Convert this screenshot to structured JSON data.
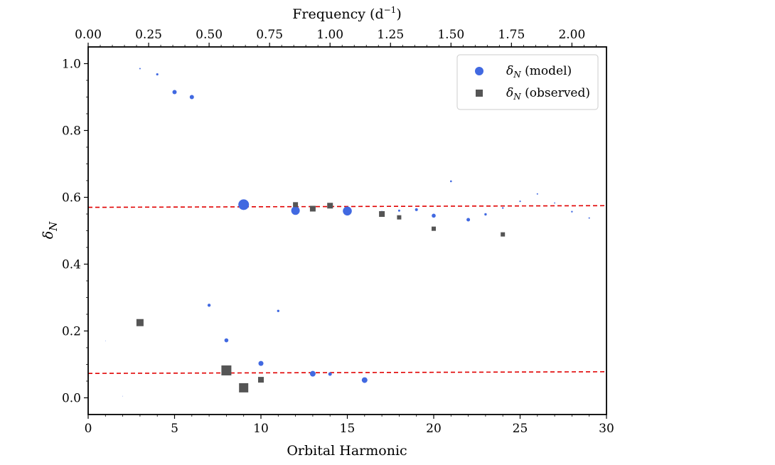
{
  "chart_data": {
    "type": "scatter",
    "title": "",
    "xlabel": "Orbital Harmonic",
    "ylabel": "δ",
    "ylabel_sub": "N",
    "top_xlabel": "Frequency (d",
    "top_xlabel_sup": "−1",
    "top_xlabel_end": ")",
    "xlim": [
      0,
      30
    ],
    "ylim": [
      -0.05,
      1.05
    ],
    "top_xlim": [
      0,
      2.1429
    ],
    "x_ticks": [
      {
        "value": 0,
        "label": "0"
      },
      {
        "value": 5,
        "label": "5"
      },
      {
        "value": 10,
        "label": "10"
      },
      {
        "value": 15,
        "label": "15"
      },
      {
        "value": 20,
        "label": "20"
      },
      {
        "value": 25,
        "label": "25"
      },
      {
        "value": 30,
        "label": "30"
      }
    ],
    "y_ticks": [
      {
        "value": 0.0,
        "label": "0.0"
      },
      {
        "value": 0.2,
        "label": "0.2"
      },
      {
        "value": 0.4,
        "label": "0.4"
      },
      {
        "value": 0.6,
        "label": "0.6"
      },
      {
        "value": 0.8,
        "label": "0.8"
      },
      {
        "value": 1.0,
        "label": "1.0"
      }
    ],
    "top_ticks": [
      {
        "value": 0.0,
        "label": "0.00"
      },
      {
        "value": 0.25,
        "label": "0.25"
      },
      {
        "value": 0.5,
        "label": "0.50"
      },
      {
        "value": 0.75,
        "label": "0.75"
      },
      {
        "value": 1.0,
        "label": "1.00"
      },
      {
        "value": 1.25,
        "label": "1.25"
      },
      {
        "value": 1.5,
        "label": "1.50"
      },
      {
        "value": 1.75,
        "label": "1.75"
      },
      {
        "value": 2.0,
        "label": "2.00"
      }
    ],
    "legend": {
      "location": "upper right",
      "entries": [
        {
          "symbol": "δ",
          "sub": "N",
          "text": " (model)",
          "marker": "circle",
          "color": "#4169E1"
        },
        {
          "symbol": "δ",
          "sub": "N",
          "text": " (observed)",
          "marker": "square",
          "color": "#555555"
        }
      ]
    },
    "reference_lines": [
      {
        "x": [
          0,
          30
        ],
        "y": [
          0.57,
          0.575
        ],
        "color": "#e00000",
        "style": "dashed"
      },
      {
        "x": [
          0,
          30
        ],
        "y": [
          0.073,
          0.078
        ],
        "color": "#e00000",
        "style": "dashed"
      }
    ],
    "series": [
      {
        "name": "model",
        "marker": "circle",
        "color": "#4169E1",
        "points": [
          {
            "x": 1,
            "y": 0.17,
            "size": 0.4
          },
          {
            "x": 2,
            "y": 0.005,
            "size": 0.4
          },
          {
            "x": 3,
            "y": 0.985,
            "size": 1
          },
          {
            "x": 4,
            "y": 0.968,
            "size": 1.6
          },
          {
            "x": 5,
            "y": 0.915,
            "size": 3
          },
          {
            "x": 6,
            "y": 0.9,
            "size": 3
          },
          {
            "x": 7,
            "y": 0.277,
            "size": 2.2
          },
          {
            "x": 8,
            "y": 0.172,
            "size": 2.8
          },
          {
            "x": 9,
            "y": 0.578,
            "size": 7.5
          },
          {
            "x": 10,
            "y": 0.103,
            "size": 3.5
          },
          {
            "x": 11,
            "y": 0.26,
            "size": 1.7
          },
          {
            "x": 12,
            "y": 0.56,
            "size": 6
          },
          {
            "x": 13,
            "y": 0.072,
            "size": 4
          },
          {
            "x": 14,
            "y": 0.071,
            "size": 2.5
          },
          {
            "x": 15,
            "y": 0.559,
            "size": 6.3
          },
          {
            "x": 16,
            "y": 0.053,
            "size": 4
          },
          {
            "x": 17,
            "y": 0.553,
            "size": 3
          },
          {
            "x": 18,
            "y": 0.56,
            "size": 1.5
          },
          {
            "x": 19,
            "y": 0.563,
            "size": 2
          },
          {
            "x": 20,
            "y": 0.545,
            "size": 2.8
          },
          {
            "x": 21,
            "y": 0.648,
            "size": 1.3
          },
          {
            "x": 22,
            "y": 0.533,
            "size": 2.5
          },
          {
            "x": 23,
            "y": 0.549,
            "size": 1.7
          },
          {
            "x": 24,
            "y": 0.568,
            "size": 1.2
          },
          {
            "x": 25,
            "y": 0.588,
            "size": 1.1
          },
          {
            "x": 26,
            "y": 0.61,
            "size": 1
          },
          {
            "x": 27,
            "y": 0.583,
            "size": 0.9
          },
          {
            "x": 28,
            "y": 0.557,
            "size": 1.2
          },
          {
            "x": 29,
            "y": 0.538,
            "size": 1
          }
        ]
      },
      {
        "name": "observed",
        "marker": "square",
        "color": "#555555",
        "points": [
          {
            "x": 3,
            "y": 0.225,
            "size": 5
          },
          {
            "x": 8,
            "y": 0.082,
            "size": 7
          },
          {
            "x": 9,
            "y": 0.03,
            "size": 6.5
          },
          {
            "x": 10,
            "y": 0.054,
            "size": 4
          },
          {
            "x": 12,
            "y": 0.578,
            "size": 3.5
          },
          {
            "x": 13,
            "y": 0.566,
            "size": 4
          },
          {
            "x": 14,
            "y": 0.575,
            "size": 4
          },
          {
            "x": 17,
            "y": 0.55,
            "size": 4
          },
          {
            "x": 18,
            "y": 0.54,
            "size": 3
          },
          {
            "x": 20,
            "y": 0.506,
            "size": 3
          },
          {
            "x": 24,
            "y": 0.489,
            "size": 3
          }
        ]
      }
    ]
  }
}
